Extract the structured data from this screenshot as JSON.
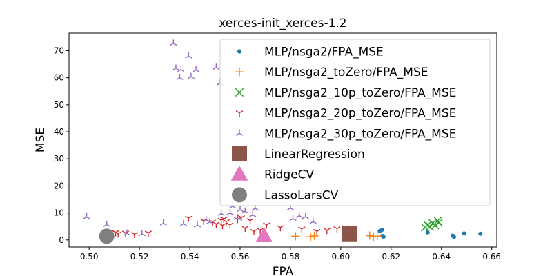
{
  "chart_data": {
    "type": "scatter",
    "title": "xerces-init_xerces-1.2",
    "xlabel": "FPA",
    "ylabel": "MSE",
    "xlim": [
      0.492,
      0.662
    ],
    "ylim": [
      -2.6,
      76.5
    ],
    "xticks": [
      0.5,
      0.52,
      0.54,
      0.56,
      0.58,
      0.6,
      0.62,
      0.64,
      0.66
    ],
    "xtick_labels": [
      "0.50",
      "0.52",
      "0.54",
      "0.56",
      "0.58",
      "0.60",
      "0.62",
      "0.64",
      "0.66"
    ],
    "yticks": [
      0,
      10,
      20,
      30,
      40,
      50,
      60,
      70
    ],
    "ytick_labels": [
      "0",
      "10",
      "20",
      "30",
      "40",
      "50",
      "60",
      "70"
    ],
    "grid": false,
    "legend_position": "top-right",
    "series": [
      {
        "name": "MLP/nsga2/FPA_MSE",
        "marker": "dot",
        "color": "#1f77b4",
        "points": [
          [
            0.6155,
            3.3
          ],
          [
            0.6165,
            3.8
          ],
          [
            0.6165,
            1.5
          ],
          [
            0.617,
            1.2
          ],
          [
            0.6345,
            2.8
          ],
          [
            0.6445,
            1.6
          ],
          [
            0.645,
            1.1
          ],
          [
            0.649,
            2.4
          ],
          [
            0.6555,
            2.3
          ]
        ]
      },
      {
        "name": "MLP/nsga2_toZero/FPA_MSE",
        "marker": "plus",
        "color": "#ff7f0e",
        "points": [
          [
            0.582,
            1.4
          ],
          [
            0.588,
            1.2
          ],
          [
            0.5895,
            1.5
          ],
          [
            0.6115,
            1.6
          ],
          [
            0.613,
            1.2
          ],
          [
            0.6145,
            1.4
          ]
        ]
      },
      {
        "name": "MLP/nsga2_10p_toZero/FPA_MSE",
        "marker": "x",
        "color": "#2ca02c",
        "points": [
          [
            0.6335,
            4.6
          ],
          [
            0.6345,
            5.5
          ],
          [
            0.6355,
            4.9
          ],
          [
            0.6365,
            6.2
          ],
          [
            0.6375,
            5.4
          ],
          [
            0.6385,
            7.1
          ],
          [
            0.639,
            6.4
          ]
        ]
      },
      {
        "name": "MLP/nsga2_20p_toZero/FPA_MSE",
        "marker": "tri_down",
        "color": "#d62728",
        "points": [
          [
            0.5105,
            2.8
          ],
          [
            0.5115,
            2.3
          ],
          [
            0.5145,
            2.6
          ],
          [
            0.518,
            2.1
          ],
          [
            0.5235,
            2.6
          ],
          [
            0.5395,
            8.1
          ],
          [
            0.5455,
            7.1
          ],
          [
            0.549,
            6.7
          ],
          [
            0.5505,
            5.9
          ],
          [
            0.5525,
            7.3
          ],
          [
            0.553,
            5.4
          ],
          [
            0.5535,
            7.8
          ],
          [
            0.5545,
            6.8
          ],
          [
            0.556,
            5.6
          ],
          [
            0.559,
            7.6
          ],
          [
            0.5605,
            8.3
          ],
          [
            0.562,
            4.4
          ],
          [
            0.564,
            7.2
          ],
          [
            0.5655,
            3.2
          ],
          [
            0.568,
            3.7
          ],
          [
            0.5705,
            5.6
          ],
          [
            0.576,
            4.6
          ],
          [
            0.5845,
            4.1
          ],
          [
            0.5905,
            3.2
          ],
          [
            0.5945,
            3.6
          ],
          [
            0.5985,
            4.2
          ],
          [
            0.602,
            4.6
          ]
        ]
      },
      {
        "name": "MLP/nsga2_30p_toZero/FPA_MSE",
        "marker": "tri_up",
        "color": "#9467bd",
        "points": [
          [
            0.499,
            8.5
          ],
          [
            0.507,
            5.7
          ],
          [
            0.515,
            2.5
          ],
          [
            0.521,
            2.2
          ],
          [
            0.5295,
            6.2
          ],
          [
            0.5335,
            72.7
          ],
          [
            0.5345,
            63.5
          ],
          [
            0.536,
            60.0
          ],
          [
            0.5365,
            63.0
          ],
          [
            0.5375,
            6.0
          ],
          [
            0.5395,
            68.0
          ],
          [
            0.5405,
            60.4
          ],
          [
            0.5425,
            62.9
          ],
          [
            0.543,
            5.5
          ],
          [
            0.5465,
            7.5
          ],
          [
            0.548,
            6.7
          ],
          [
            0.5505,
            63.8
          ],
          [
            0.552,
            58.0
          ],
          [
            0.5525,
            9.8
          ],
          [
            0.556,
            10.0
          ],
          [
            0.557,
            12.5
          ],
          [
            0.559,
            8.2
          ],
          [
            0.56,
            11.2
          ],
          [
            0.562,
            10.6
          ],
          [
            0.565,
            9.3
          ],
          [
            0.566,
            11.7
          ],
          [
            0.58,
            11.8
          ],
          [
            0.581,
            7.9
          ],
          [
            0.5835,
            9.0
          ],
          [
            0.586,
            8.6
          ],
          [
            0.589,
            6.8
          ]
        ]
      },
      {
        "name": "LinearRegression",
        "marker": "square",
        "color": "#8c564b",
        "points": [
          [
            0.6035,
            2.3
          ]
        ]
      },
      {
        "name": "RidgeCV",
        "marker": "triangle",
        "color": "#e377c2",
        "points": [
          [
            0.5695,
            1.5
          ]
        ]
      },
      {
        "name": "LassoLarsCV",
        "marker": "circle",
        "color": "#7f7f7f",
        "points": [
          [
            0.507,
            1.4
          ]
        ]
      }
    ]
  }
}
